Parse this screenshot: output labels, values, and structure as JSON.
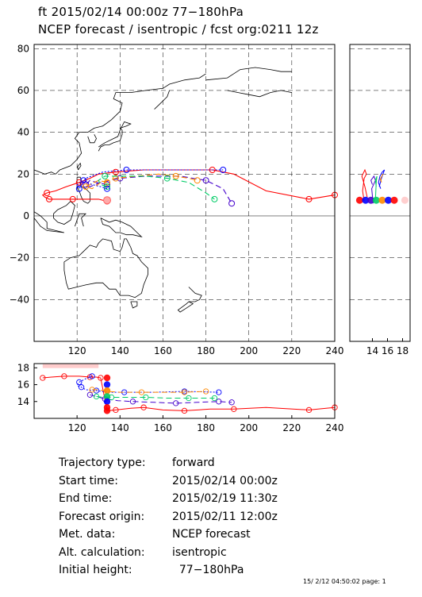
{
  "header": {
    "line1": "ft 2015/02/14 00:00z  77−180hPa",
    "line2": "NCEP forecast / isentropic / fcst org:0211 12z"
  },
  "info": {
    "rows": [
      {
        "label": "Trajectory type:",
        "value": "forward"
      },
      {
        "label": "Start time:",
        "value": "2015/02/14 00:00z"
      },
      {
        "label": "End time:",
        "value": "2015/02/19 11:30z"
      },
      {
        "label": "Forecast origin:",
        "value": "2015/02/11 12:00z"
      },
      {
        "label": "Met. data:",
        "value": "NCEP forecast"
      },
      {
        "label": "Alt. calculation:",
        "value": "isentropic"
      },
      {
        "label": "Initial height:",
        "value": "  77−180hPa"
      }
    ]
  },
  "footer": "15/ 2/12 04:50:02 page: 1",
  "chart_data": [
    {
      "type": "scatter",
      "panel": "map",
      "xlim": [
        100,
        240
      ],
      "ylim": [
        -60,
        82
      ],
      "xticks": [
        "120",
        "140",
        "160",
        "180",
        "200",
        "220",
        "240"
      ],
      "yticks": [
        "80",
        "60",
        "40",
        "20",
        "0",
        "−20",
        "−40"
      ],
      "grid": true,
      "series": [
        {
          "color": "#ff0000",
          "style": "solid",
          "x": [
            134,
            130,
            124,
            118,
            113,
            110,
            107,
            105,
            104,
            106,
            110,
            115,
            121,
            126,
            130,
            138,
            151,
            170,
            183,
            193,
            208,
            228,
            240
          ],
          "y": [
            7,
            8,
            8,
            8,
            8,
            8,
            8,
            9,
            10,
            11,
            12,
            14,
            16,
            18,
            20,
            21,
            22,
            22,
            22,
            20,
            12,
            8,
            10
          ]
        },
        {
          "color": "#0000ff",
          "style": "dotted",
          "x": [
            134,
            131,
            127,
            123,
            122,
            120,
            121,
            124,
            132,
            143,
            160,
            175,
            188
          ],
          "y": [
            13,
            14,
            15,
            17,
            16,
            15,
            13,
            18,
            21,
            22,
            22,
            22,
            22
          ]
        },
        {
          "color": "#4400cc",
          "style": "dashed",
          "x": [
            134,
            129,
            126,
            124,
            126,
            131,
            140,
            152,
            168,
            180,
            188,
            192
          ],
          "y": [
            15,
            16,
            17,
            15,
            14,
            16,
            18,
            19,
            19,
            17,
            13,
            6
          ]
        },
        {
          "color": "#ff8800",
          "style": "dashed",
          "x": [
            134,
            130,
            126,
            124,
            127,
            131,
            138,
            148,
            158,
            166,
            172,
            176
          ],
          "y": [
            16,
            17,
            15,
            14,
            13,
            16,
            18,
            19,
            20,
            19,
            18,
            17
          ]
        },
        {
          "color": "#00cc66",
          "style": "dashed",
          "x": [
            134,
            131,
            130,
            133,
            142,
            152,
            162,
            172,
            180,
            184
          ],
          "y": [
            14,
            15,
            17,
            19,
            19,
            19,
            18,
            16,
            11,
            8
          ]
        }
      ]
    },
    {
      "type": "scatter",
      "panel": "latitude-height",
      "xlim": [
        11,
        19
      ],
      "xticks": [
        "14",
        "16",
        "18"
      ]
    },
    {
      "type": "line",
      "panel": "longitude-height",
      "xlim": [
        100,
        240
      ],
      "ylim": [
        12,
        18.5
      ],
      "xticks": [
        "120",
        "140",
        "160",
        "180",
        "200",
        "220",
        "240"
      ],
      "yticks": [
        "18",
        "16",
        "14"
      ],
      "series": [
        {
          "color": "#ff0000",
          "style": "solid",
          "x": [
            104,
            108,
            114,
            121,
            126,
            129,
            131,
            134,
            138,
            145,
            151,
            160,
            170,
            182,
            193,
            208,
            228,
            236,
            240
          ],
          "y": [
            16.8,
            16.9,
            17.0,
            17.0,
            16.9,
            16.9,
            16.8,
            12.9,
            13.0,
            13.2,
            13.3,
            13.0,
            12.9,
            13.1,
            13.1,
            13.3,
            13.0,
            13.2,
            13.3
          ]
        },
        {
          "color": "#0000ff",
          "style": "dotted",
          "x": [
            127,
            124,
            121,
            120,
            122,
            124,
            129,
            134,
            142,
            156,
            170,
            186
          ],
          "y": [
            17.0,
            16.7,
            16.3,
            15.9,
            15.7,
            15.4,
            15.3,
            15.1,
            15.1,
            15.1,
            15.2,
            15.1
          ]
        },
        {
          "color": "#4400cc",
          "style": "dashed",
          "x": [
            126,
            129,
            133,
            139,
            146,
            156,
            166,
            176,
            186,
            192
          ],
          "y": [
            14.8,
            14.6,
            14.3,
            14.1,
            14.0,
            13.9,
            13.8,
            13.9,
            14.0,
            13.9
          ]
        },
        {
          "color": "#ff8800",
          "style": "dashed",
          "x": [
            127,
            130,
            134,
            140,
            150,
            160,
            170,
            180
          ],
          "y": [
            15.4,
            15.4,
            15.2,
            15.1,
            15.1,
            15.1,
            15.1,
            15.2
          ]
        },
        {
          "color": "#00cc66",
          "style": "dashed",
          "x": [
            129,
            132,
            136,
            144,
            152,
            162,
            172,
            184
          ],
          "y": [
            14.6,
            14.5,
            14.5,
            14.5,
            14.5,
            14.4,
            14.4,
            14.4
          ]
        }
      ]
    }
  ]
}
